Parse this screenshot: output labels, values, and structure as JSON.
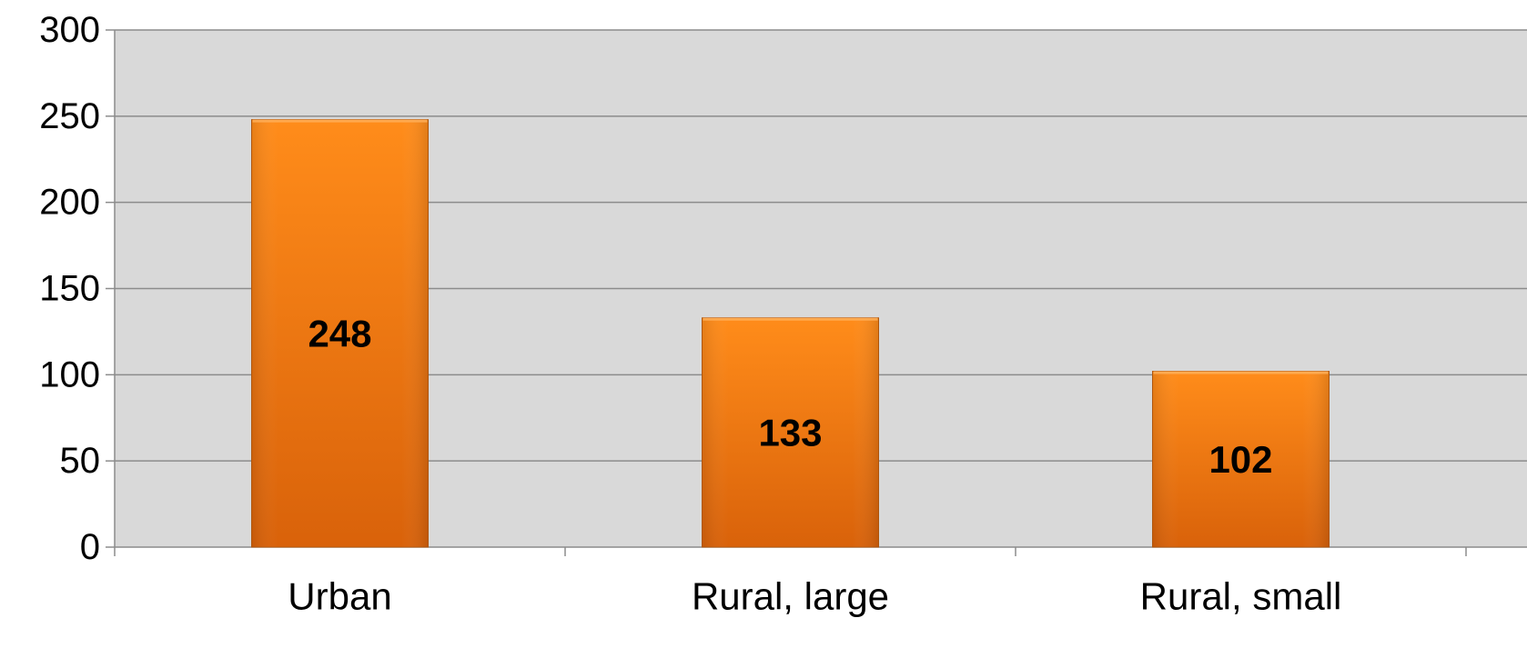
{
  "chart_data": {
    "type": "bar",
    "title": "",
    "xlabel": "",
    "ylabel": "",
    "categories": [
      "Urban",
      "Rural, large",
      "Rural, small"
    ],
    "values": [
      248,
      133,
      102
    ],
    "data_labels": [
      "248",
      "133",
      "102"
    ],
    "ylim": [
      0,
      300
    ],
    "yticks": [
      0,
      50,
      100,
      150,
      200,
      250,
      300
    ],
    "ytick_labels": [
      "0",
      "50",
      "100",
      "150",
      "200",
      "250",
      "300"
    ],
    "grid": true,
    "legend": "none",
    "colors": {
      "plot_background": "#d9d9d9",
      "bar_light": "#ff8c1a",
      "bar_dark": "#d9620a",
      "bar_edge": "#b85a0e",
      "gridline": "#8c8c8c"
    }
  }
}
